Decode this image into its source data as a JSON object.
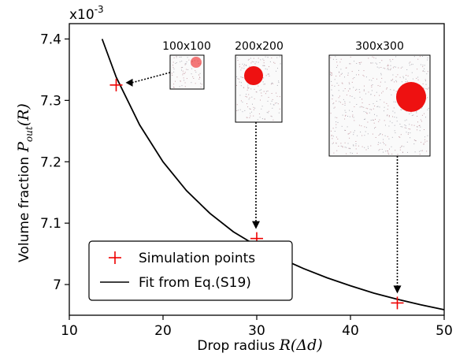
{
  "chart_data": {
    "type": "scatter",
    "multiplier_label": "x10",
    "multiplier_exponent": "-3",
    "xlabel": "Drop radius",
    "xlabel_math": "R(Δd)",
    "ylabel": "Volume fraction",
    "ylabel_math": "P",
    "ylabel_math_sub": "out",
    "ylabel_math_tail": "(R)",
    "xlim": [
      10,
      50
    ],
    "ylim": [
      6.95,
      7.425
    ],
    "xticks": [
      10,
      20,
      30,
      40,
      50
    ],
    "xtick_labels": [
      "10",
      "20",
      "30",
      "40",
      "50"
    ],
    "yticks": [
      7.0,
      7.1,
      7.2,
      7.3,
      7.4
    ],
    "ytick_labels": [
      "7",
      "7.1",
      "7.2",
      "7.3",
      "7.4"
    ],
    "grid": false,
    "legend_position": "bottom-left",
    "series": [
      {
        "name": "Simulation points",
        "kind": "markers",
        "marker": "plus",
        "color": "#ee0000",
        "x": [
          15,
          30,
          45
        ],
        "y": [
          7.325,
          7.075,
          6.97
        ]
      },
      {
        "name": "Fit from Eq.(S19)",
        "kind": "line",
        "color": "#000000",
        "x": [
          13.5,
          15,
          17.5,
          20,
          22.5,
          25,
          27.5,
          30,
          32.5,
          35,
          37.5,
          40,
          42.5,
          45,
          47.5,
          50
        ],
        "y": [
          7.4,
          7.338,
          7.26,
          7.2,
          7.153,
          7.116,
          7.086,
          7.063,
          7.043,
          7.026,
          7.011,
          6.998,
          6.986,
          6.976,
          6.967,
          6.959
        ]
      }
    ],
    "insets": [
      {
        "label": "100x100",
        "points_to_x": 15,
        "points_to_y": 7.325,
        "drop_color": "#ee2222"
      },
      {
        "label": "200x200",
        "points_to_x": 30,
        "points_to_y": 7.075,
        "drop_color": "#ee1111"
      },
      {
        "label": "300x300",
        "points_to_x": 45,
        "points_to_y": 6.97,
        "drop_color": "#ee1111"
      }
    ]
  }
}
